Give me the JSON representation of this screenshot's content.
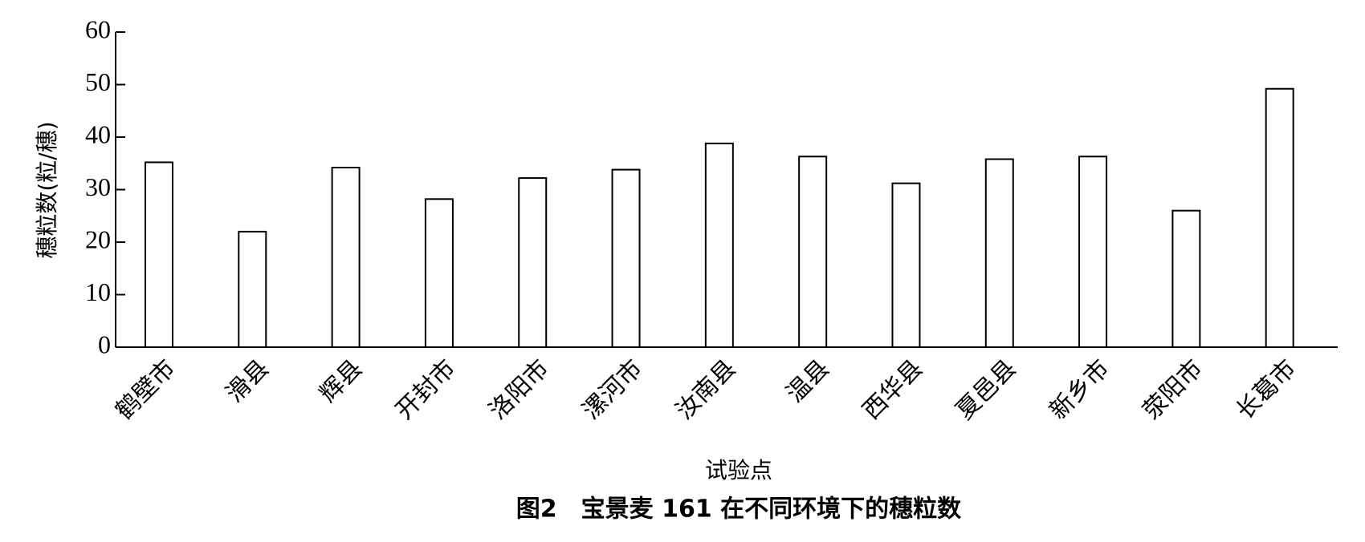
{
  "chart_data": {
    "type": "bar",
    "title": "图2　宝景麦 161 在不同环境下的穗粒数",
    "x_label": "试验点",
    "y_label": "穗粒数(粒/穗)",
    "categories": [
      "鹤壁市",
      "滑县",
      "辉县",
      "开封市",
      "洛阳市",
      "漯河市",
      "汝南县",
      "温县",
      "西华县",
      "夏邑县",
      "新乡市",
      "荥阳市",
      "长葛市"
    ],
    "values": [
      35.2,
      22,
      34.2,
      28.2,
      32.2,
      33.8,
      38.8,
      36.3,
      31.2,
      35.8,
      36.3,
      26,
      49.2
    ],
    "color": "#ffffff",
    "ylim": [
      0,
      60
    ],
    "yticks": [
      0,
      10,
      20,
      30,
      40,
      50,
      60
    ],
    "grid": false
  }
}
